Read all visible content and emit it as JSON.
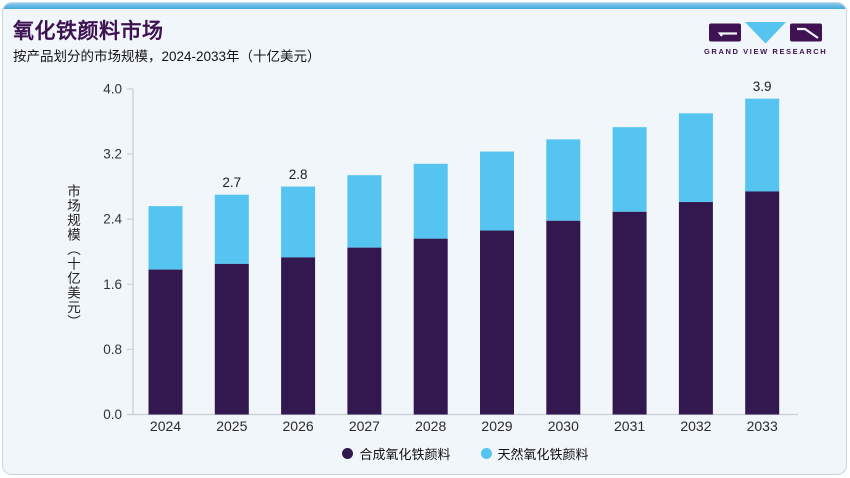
{
  "header": {
    "title": "氧化铁颜料市场",
    "subtitle": "按产品划分的市场规模，2024-2033年（十亿美元）"
  },
  "logo": {
    "brand": "GRAND VIEW RESEARCH",
    "purple": "#3F1253",
    "blue": "#55C4F0"
  },
  "colors": {
    "card_bg": "#F1F6FA",
    "card_border": "#C8D6E0",
    "top_accent_light": "#92CEEE",
    "top_accent_dark": "#45A9DE",
    "axis": "#C7CED6",
    "title_purple": "#3F1253"
  },
  "chart_data": {
    "type": "bar",
    "stacked": true,
    "title": "氧化铁颜料市场",
    "subtitle": "按产品划分的市场规模，2024-2033年（十亿美元）",
    "ylabel": "市场规模（十亿美元）",
    "categories": [
      "2024",
      "2025",
      "2026",
      "2027",
      "2028",
      "2029",
      "2030",
      "2031",
      "2032",
      "2033"
    ],
    "series": [
      {
        "name": "合成氧化铁颜料",
        "color": "#33184F",
        "values": [
          1.78,
          1.85,
          1.93,
          2.05,
          2.16,
          2.26,
          2.38,
          2.49,
          2.61,
          2.74
        ]
      },
      {
        "name": "天然氧化铁颜料",
        "color": "#55C4F0",
        "values": [
          0.78,
          0.85,
          0.87,
          0.89,
          0.92,
          0.97,
          1.0,
          1.04,
          1.09,
          1.14
        ]
      }
    ],
    "totals": [
      2.56,
      2.7,
      2.8,
      2.94,
      3.08,
      3.23,
      3.38,
      3.53,
      3.7,
      3.88
    ],
    "total_labels": [
      {
        "category": "2025",
        "label": "2.7"
      },
      {
        "category": "2026",
        "label": "2.8"
      },
      {
        "category": "2033",
        "label": "3.9"
      }
    ],
    "ylim": [
      0.0,
      4.0
    ],
    "yticks": [
      "0.0",
      "0.8",
      "1.6",
      "2.4",
      "3.2",
      "4.0"
    ],
    "grid": false,
    "legend_position": "bottom"
  }
}
